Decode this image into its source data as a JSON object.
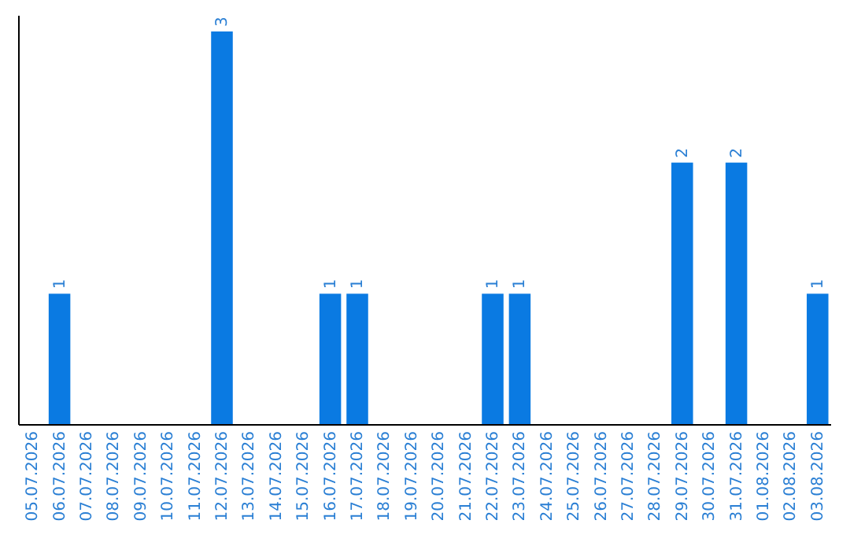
{
  "chart_data": {
    "type": "bar",
    "categories": [
      "05.07.2026",
      "06.07.2026",
      "07.07.2026",
      "08.07.2026",
      "09.07.2026",
      "10.07.2026",
      "11.07.2026",
      "12.07.2026",
      "13.07.2026",
      "14.07.2026",
      "15.07.2026",
      "16.07.2026",
      "17.07.2026",
      "18.07.2026",
      "19.07.2026",
      "20.07.2026",
      "21.07.2026",
      "22.07.2026",
      "23.07.2026",
      "24.07.2026",
      "25.07.2026",
      "26.07.2026",
      "27.07.2026",
      "28.07.2026",
      "29.07.2026",
      "30.07.2026",
      "31.07.2026",
      "01.08.2026",
      "02.08.2026",
      "03.08.2026"
    ],
    "values": [
      0,
      1,
      0,
      0,
      0,
      0,
      0,
      3,
      0,
      0,
      0,
      1,
      1,
      0,
      0,
      0,
      0,
      1,
      1,
      0,
      0,
      0,
      0,
      0,
      2,
      0,
      2,
      0,
      0,
      1
    ],
    "value_labels": [
      null,
      "1",
      null,
      null,
      null,
      null,
      null,
      "3",
      null,
      null,
      null,
      "1",
      "1",
      null,
      null,
      null,
      null,
      "1",
      "1",
      null,
      null,
      null,
      null,
      null,
      "2",
      null,
      "2",
      null,
      null,
      "1"
    ],
    "color": "#0a7ae2",
    "tick_labels": "x"
  }
}
